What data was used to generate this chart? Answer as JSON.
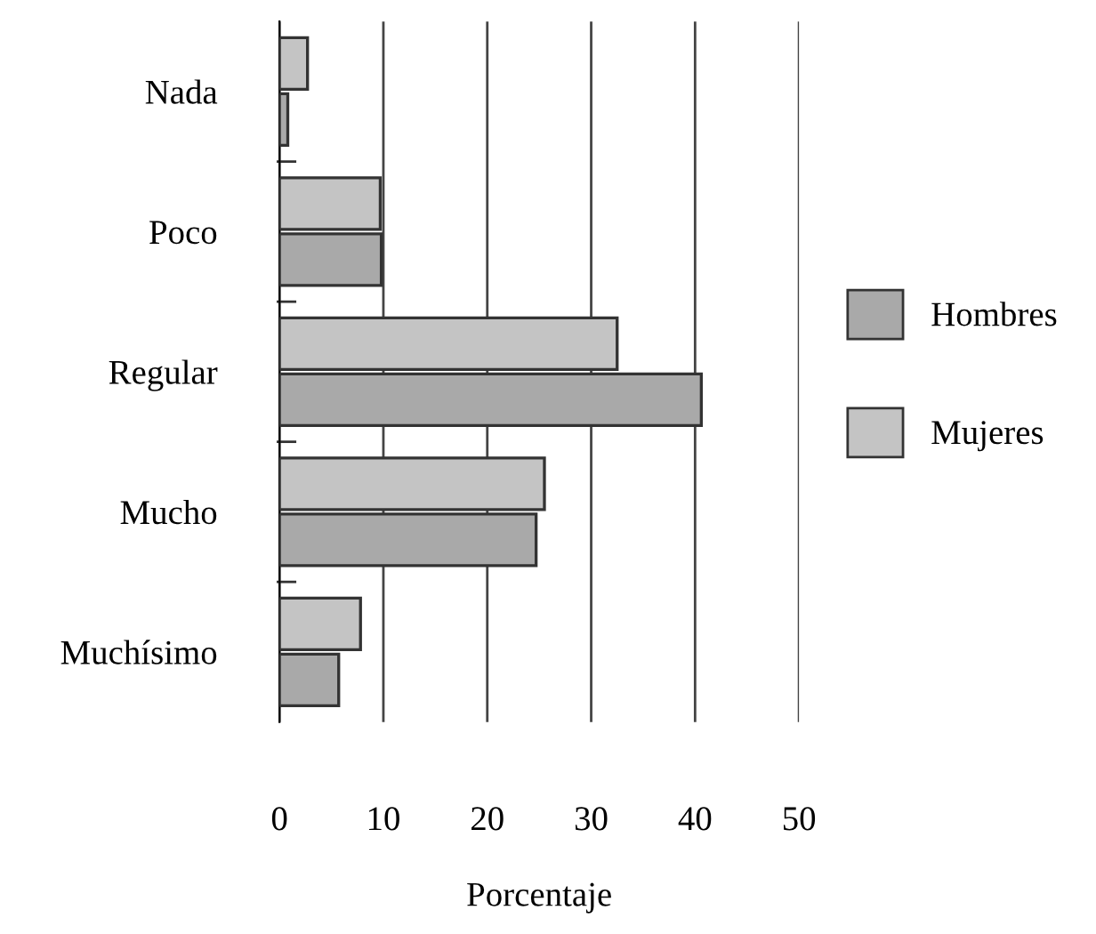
{
  "chart_data": {
    "type": "bar",
    "orientation": "horizontal",
    "xlabel": "Porcentaje",
    "categories": [
      "Nada",
      "Poco",
      "Regular",
      "Mucho",
      "Muchísimo"
    ],
    "series": [
      {
        "name": "Hombres",
        "color": "#a9a9a9",
        "values": [
          0.8,
          9.8,
          40.6,
          24.7,
          5.7
        ]
      },
      {
        "name": "Mujeres",
        "color": "#c4c4c4",
        "values": [
          2.7,
          9.7,
          32.5,
          25.5,
          7.8
        ]
      }
    ],
    "xlim": [
      0,
      50
    ],
    "xticks": [
      0,
      10,
      20,
      30,
      40,
      50
    ],
    "grid": "x",
    "legend": "right"
  }
}
